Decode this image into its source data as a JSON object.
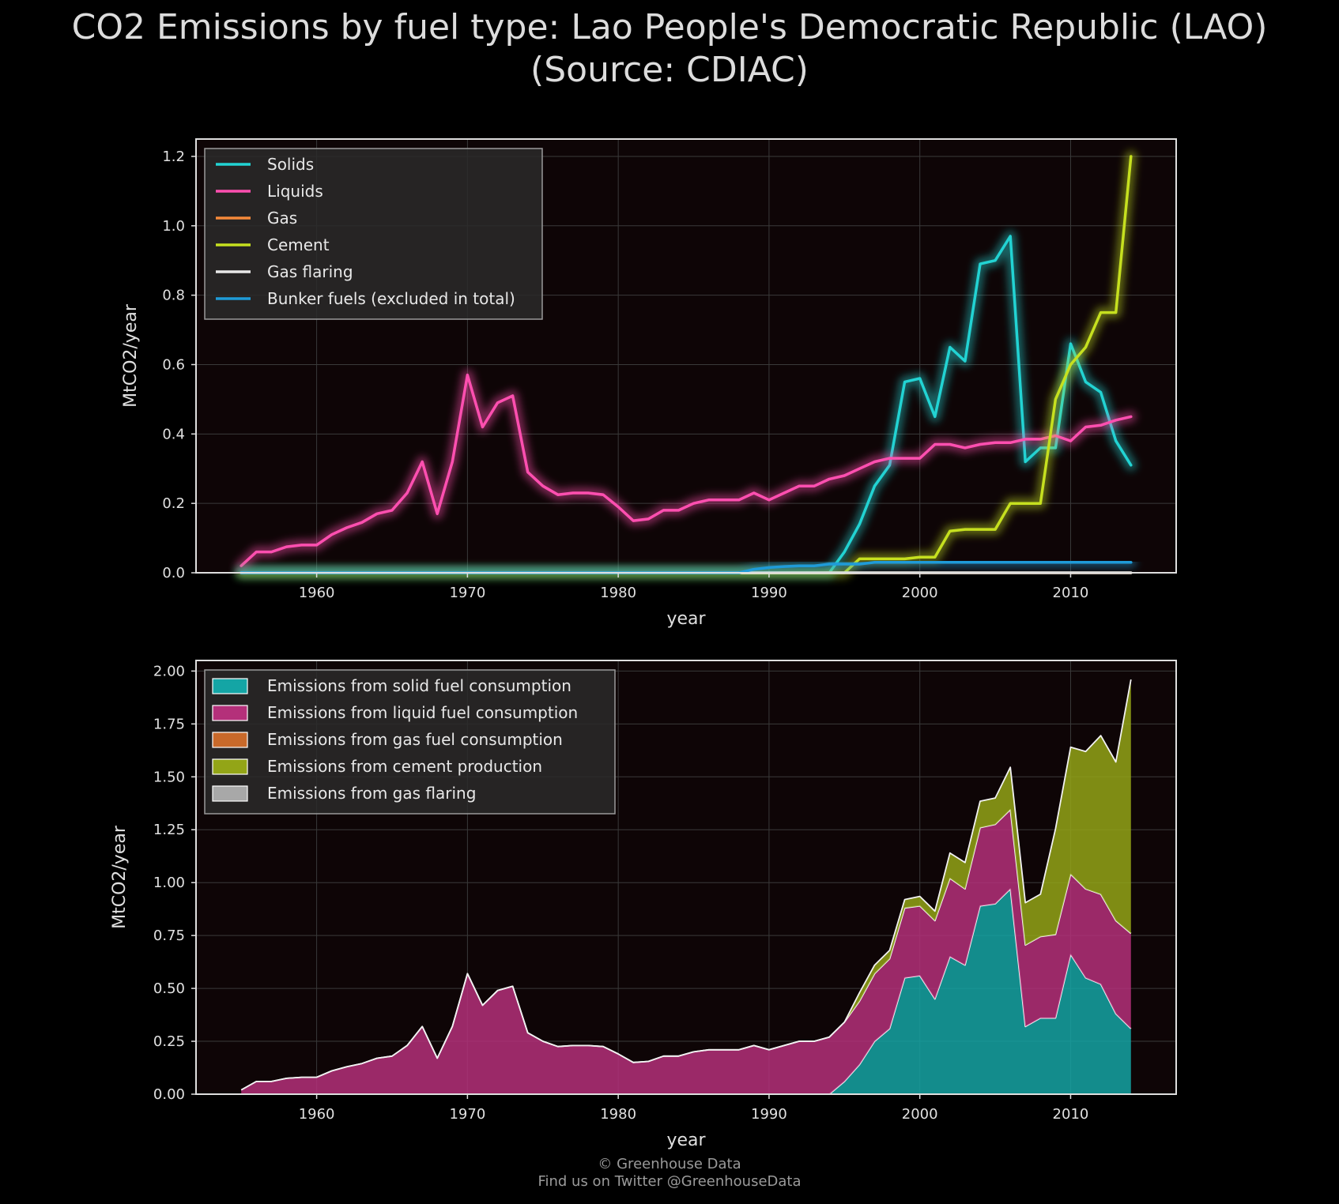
{
  "title_line1": "CO2 Emissions by fuel type: Lao People's Democratic Republic (LAO)",
  "title_line2": "(Source: CDIAC)",
  "footer_line1": "© Greenhouse Data",
  "footer_line2": "Find us on Twitter @GreenhouseData",
  "chart_data": [
    {
      "type": "line",
      "xlabel": "year",
      "ylabel": "MtCO2/year",
      "xlim": [
        1952,
        2017
      ],
      "ylim": [
        0,
        1.25
      ],
      "xticks": [
        1960,
        1970,
        1980,
        1990,
        2000,
        2010
      ],
      "yticks": [
        "0.0",
        "0.2",
        "0.4",
        "0.6",
        "0.8",
        "1.0",
        "1.2"
      ],
      "grid": true,
      "legend_position": "top-left",
      "x": [
        1955,
        1956,
        1957,
        1958,
        1959,
        1960,
        1961,
        1962,
        1963,
        1964,
        1965,
        1966,
        1967,
        1968,
        1969,
        1970,
        1971,
        1972,
        1973,
        1974,
        1975,
        1976,
        1977,
        1978,
        1979,
        1980,
        1981,
        1982,
        1983,
        1984,
        1985,
        1986,
        1987,
        1988,
        1989,
        1990,
        1991,
        1992,
        1993,
        1994,
        1995,
        1996,
        1997,
        1998,
        1999,
        2000,
        2001,
        2002,
        2003,
        2004,
        2005,
        2006,
        2007,
        2008,
        2009,
        2010,
        2011,
        2012,
        2013,
        2014
      ],
      "series": [
        {
          "name": "Solids",
          "color": "#22d3d3",
          "values": [
            0,
            0,
            0,
            0,
            0,
            0,
            0,
            0,
            0,
            0,
            0,
            0,
            0,
            0,
            0,
            0,
            0,
            0,
            0,
            0,
            0,
            0,
            0,
            0,
            0,
            0,
            0,
            0,
            0,
            0,
            0,
            0,
            0,
            0,
            0,
            0,
            0,
            0,
            0,
            0,
            0.06,
            0.14,
            0.25,
            0.31,
            0.55,
            0.56,
            0.45,
            0.65,
            0.61,
            0.89,
            0.9,
            0.97,
            0.32,
            0.36,
            0.36,
            0.66,
            0.55,
            0.52,
            0.38,
            0.31
          ]
        },
        {
          "name": "Liquids",
          "color": "#ff4fb0",
          "values": [
            0.02,
            0.06,
            0.06,
            0.075,
            0.08,
            0.08,
            0.11,
            0.13,
            0.145,
            0.17,
            0.18,
            0.23,
            0.32,
            0.17,
            0.32,
            0.57,
            0.42,
            0.49,
            0.51,
            0.29,
            0.25,
            0.225,
            0.23,
            0.23,
            0.225,
            0.19,
            0.15,
            0.155,
            0.18,
            0.18,
            0.2,
            0.21,
            0.21,
            0.21,
            0.23,
            0.21,
            0.23,
            0.25,
            0.25,
            0.27,
            0.28,
            0.3,
            0.32,
            0.33,
            0.33,
            0.33,
            0.37,
            0.37,
            0.36,
            0.37,
            0.375,
            0.375,
            0.385,
            0.385,
            0.395,
            0.38,
            0.42,
            0.425,
            0.44,
            0.45
          ]
        },
        {
          "name": "Gas",
          "color": "#f5893a",
          "values": [
            0,
            0,
            0,
            0,
            0,
            0,
            0,
            0,
            0,
            0,
            0,
            0,
            0,
            0,
            0,
            0,
            0,
            0,
            0,
            0,
            0,
            0,
            0,
            0,
            0,
            0,
            0,
            0,
            0,
            0,
            0,
            0,
            0,
            0,
            0,
            0,
            0,
            0,
            0,
            0,
            0,
            0,
            0,
            0,
            0,
            0,
            0,
            0,
            0,
            0,
            0,
            0,
            0,
            0,
            0,
            0,
            0,
            0,
            0,
            0
          ]
        },
        {
          "name": "Cement",
          "color": "#c6e01f",
          "values": [
            0,
            0,
            0,
            0,
            0,
            0,
            0,
            0,
            0,
            0,
            0,
            0,
            0,
            0,
            0,
            0,
            0,
            0,
            0,
            0,
            0,
            0,
            0,
            0,
            0,
            0,
            0,
            0,
            0,
            0,
            0,
            0,
            0,
            0,
            0,
            0,
            0,
            0,
            0,
            0,
            0,
            0.04,
            0.04,
            0.04,
            0.04,
            0.045,
            0.045,
            0.12,
            0.125,
            0.125,
            0.125,
            0.2,
            0.2,
            0.2,
            0.5,
            0.6,
            0.65,
            0.75,
            0.75,
            1.2
          ]
        },
        {
          "name": "Gas flaring",
          "color": "#e8e8e8",
          "values": [
            0,
            0,
            0,
            0,
            0,
            0,
            0,
            0,
            0,
            0,
            0,
            0,
            0,
            0,
            0,
            0,
            0,
            0,
            0,
            0,
            0,
            0,
            0,
            0,
            0,
            0,
            0,
            0,
            0,
            0,
            0,
            0,
            0,
            0,
            0,
            0,
            0,
            0,
            0,
            0,
            0,
            0,
            0,
            0,
            0,
            0,
            0,
            0,
            0,
            0,
            0,
            0,
            0,
            0,
            0,
            0,
            0,
            0,
            0,
            0
          ]
        },
        {
          "name": "Bunker fuels (excluded in total)",
          "color": "#1f9bd8",
          "values": [
            0,
            0,
            0,
            0,
            0,
            0,
            0,
            0,
            0,
            0,
            0,
            0,
            0,
            0,
            0,
            0,
            0,
            0,
            0,
            0,
            0,
            0,
            0,
            0,
            0,
            0,
            0,
            0,
            0,
            0,
            0,
            0,
            0,
            0,
            0.01,
            0.015,
            0.018,
            0.02,
            0.02,
            0.025,
            0.025,
            0.025,
            0.03,
            0.03,
            0.03,
            0.03,
            0.03,
            0.03,
            0.03,
            0.03,
            0.03,
            0.03,
            0.03,
            0.03,
            0.03,
            0.03,
            0.03,
            0.03,
            0.03,
            0.03
          ]
        }
      ]
    },
    {
      "type": "area",
      "stacked": true,
      "xlabel": "year",
      "ylabel": "MtCO2/year",
      "xlim": [
        1952,
        2017
      ],
      "ylim": [
        0,
        2.05
      ],
      "xticks": [
        1960,
        1970,
        1980,
        1990,
        2000,
        2010
      ],
      "yticks": [
        "0.00",
        "0.25",
        "0.50",
        "0.75",
        "1.00",
        "1.25",
        "1.50",
        "1.75",
        "2.00"
      ],
      "grid": true,
      "legend_position": "top-left",
      "x": [
        1955,
        1956,
        1957,
        1958,
        1959,
        1960,
        1961,
        1962,
        1963,
        1964,
        1965,
        1966,
        1967,
        1968,
        1969,
        1970,
        1971,
        1972,
        1973,
        1974,
        1975,
        1976,
        1977,
        1978,
        1979,
        1980,
        1981,
        1982,
        1983,
        1984,
        1985,
        1986,
        1987,
        1988,
        1989,
        1990,
        1991,
        1992,
        1993,
        1994,
        1995,
        1996,
        1997,
        1998,
        1999,
        2000,
        2001,
        2002,
        2003,
        2004,
        2005,
        2006,
        2007,
        2008,
        2009,
        2010,
        2011,
        2012,
        2013,
        2014
      ],
      "series": [
        {
          "name": "Emissions from solid fuel consumption",
          "color": "#14a5a5",
          "values": [
            0,
            0,
            0,
            0,
            0,
            0,
            0,
            0,
            0,
            0,
            0,
            0,
            0,
            0,
            0,
            0,
            0,
            0,
            0,
            0,
            0,
            0,
            0,
            0,
            0,
            0,
            0,
            0,
            0,
            0,
            0,
            0,
            0,
            0,
            0,
            0,
            0,
            0,
            0,
            0,
            0.06,
            0.14,
            0.25,
            0.31,
            0.55,
            0.56,
            0.45,
            0.65,
            0.61,
            0.89,
            0.9,
            0.97,
            0.32,
            0.36,
            0.36,
            0.66,
            0.55,
            0.52,
            0.38,
            0.31
          ]
        },
        {
          "name": "Emissions from liquid fuel consumption",
          "color": "#b4307a",
          "values": [
            0.02,
            0.06,
            0.06,
            0.075,
            0.08,
            0.08,
            0.11,
            0.13,
            0.145,
            0.17,
            0.18,
            0.23,
            0.32,
            0.17,
            0.32,
            0.57,
            0.42,
            0.49,
            0.51,
            0.29,
            0.25,
            0.225,
            0.23,
            0.23,
            0.225,
            0.19,
            0.15,
            0.155,
            0.18,
            0.18,
            0.2,
            0.21,
            0.21,
            0.21,
            0.23,
            0.21,
            0.23,
            0.25,
            0.25,
            0.27,
            0.28,
            0.3,
            0.32,
            0.33,
            0.33,
            0.33,
            0.37,
            0.37,
            0.36,
            0.37,
            0.375,
            0.375,
            0.385,
            0.385,
            0.395,
            0.38,
            0.42,
            0.425,
            0.44,
            0.45
          ]
        },
        {
          "name": "Emissions from gas fuel consumption",
          "color": "#c8692a",
          "values": [
            0,
            0,
            0,
            0,
            0,
            0,
            0,
            0,
            0,
            0,
            0,
            0,
            0,
            0,
            0,
            0,
            0,
            0,
            0,
            0,
            0,
            0,
            0,
            0,
            0,
            0,
            0,
            0,
            0,
            0,
            0,
            0,
            0,
            0,
            0,
            0,
            0,
            0,
            0,
            0,
            0,
            0,
            0,
            0,
            0,
            0,
            0,
            0,
            0,
            0,
            0,
            0,
            0,
            0,
            0,
            0,
            0,
            0,
            0,
            0
          ]
        },
        {
          "name": "Emissions from cement production",
          "color": "#93a517",
          "values": [
            0,
            0,
            0,
            0,
            0,
            0,
            0,
            0,
            0,
            0,
            0,
            0,
            0,
            0,
            0,
            0,
            0,
            0,
            0,
            0,
            0,
            0,
            0,
            0,
            0,
            0,
            0,
            0,
            0,
            0,
            0,
            0,
            0,
            0,
            0,
            0,
            0,
            0,
            0,
            0,
            0,
            0.04,
            0.04,
            0.04,
            0.04,
            0.045,
            0.045,
            0.12,
            0.125,
            0.125,
            0.125,
            0.2,
            0.2,
            0.2,
            0.5,
            0.6,
            0.65,
            0.75,
            0.75,
            1.2
          ]
        },
        {
          "name": "Emissions from gas flaring",
          "color": "#a8a8a8",
          "values": [
            0,
            0,
            0,
            0,
            0,
            0,
            0,
            0,
            0,
            0,
            0,
            0,
            0,
            0,
            0,
            0,
            0,
            0,
            0,
            0,
            0,
            0,
            0,
            0,
            0,
            0,
            0,
            0,
            0,
            0,
            0,
            0,
            0,
            0,
            0,
            0,
            0,
            0,
            0,
            0,
            0,
            0,
            0,
            0,
            0,
            0,
            0,
            0,
            0,
            0,
            0,
            0,
            0,
            0,
            0,
            0,
            0,
            0,
            0,
            0
          ]
        }
      ]
    }
  ]
}
